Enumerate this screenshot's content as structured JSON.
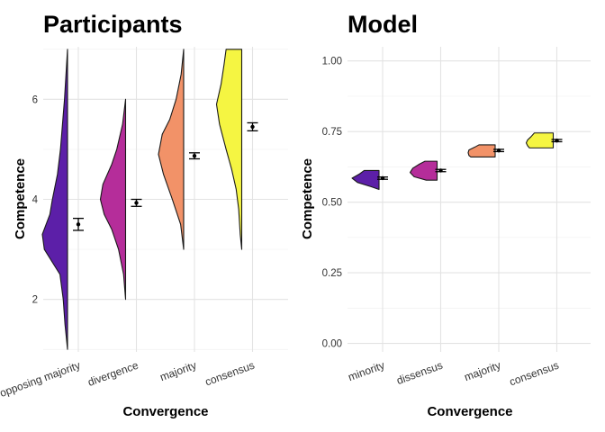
{
  "chart_data": [
    {
      "type": "violin",
      "title": "Participants",
      "xlabel": "Convergence",
      "ylabel": "Competence",
      "ylim": [
        0.95,
        7.05
      ],
      "yticks": [
        2,
        4,
        6
      ],
      "grid": true,
      "legend": "none",
      "categories": [
        "opposing majority",
        "divergence",
        "majority",
        "consensus"
      ],
      "colors": [
        "#5c1fa8",
        "#b52d9a",
        "#f29268",
        "#f5f542"
      ],
      "means": [
        3.5,
        3.93,
        4.87,
        5.45
      ],
      "error": [
        0.12,
        0.07,
        0.06,
        0.08
      ],
      "density": [
        {
          "y": [
            1,
            1.5,
            2,
            2.5,
            3,
            3.3,
            3.7,
            4,
            4.5,
            5,
            5.5,
            6,
            6.5,
            7
          ],
          "w": [
            0,
            0.1,
            0.17,
            0.3,
            0.92,
            1,
            0.7,
            0.6,
            0.4,
            0.28,
            0.2,
            0.12,
            0.06,
            0
          ]
        },
        {
          "y": [
            2,
            2.5,
            3,
            3.4,
            3.7,
            4,
            4.3,
            4.7,
            5,
            5.5,
            6
          ],
          "w": [
            0,
            0.08,
            0.28,
            0.55,
            0.85,
            1,
            0.9,
            0.55,
            0.35,
            0.12,
            0
          ]
        },
        {
          "y": [
            3,
            3.5,
            4,
            4.5,
            4.9,
            5.3,
            5.6,
            6,
            6.5,
            7
          ],
          "w": [
            0,
            0.12,
            0.45,
            0.8,
            1,
            0.85,
            0.55,
            0.3,
            0.1,
            0
          ]
        },
        {
          "y": [
            3,
            3.3,
            3.8,
            4.2,
            4.6,
            5,
            5.5,
            5.9,
            6.3,
            6.7,
            7
          ],
          "w": [
            0,
            0.06,
            0.12,
            0.22,
            0.4,
            0.62,
            0.88,
            1,
            0.82,
            0.7,
            0.62
          ]
        }
      ]
    },
    {
      "type": "violin",
      "title": "Model",
      "xlabel": "Convergence",
      "ylabel": "Competence",
      "ylim": [
        -0.03,
        1.05
      ],
      "yticks": [
        0,
        0.25,
        0.5,
        0.75,
        1
      ],
      "ytick_labels": [
        "0.00",
        "0.25",
        "0.50",
        "0.75",
        "1.00"
      ],
      "grid": true,
      "legend": "none",
      "categories": [
        "minority",
        "dissensus",
        "majority",
        "consensus"
      ],
      "colors": [
        "#5c1fa8",
        "#b52d9a",
        "#f29268",
        "#f5f542"
      ],
      "means": [
        0.585,
        0.612,
        0.683,
        0.718
      ],
      "error": [
        0.004,
        0.004,
        0.004,
        0.004
      ],
      "density": [
        {
          "y": [
            0.545,
            0.555,
            0.57,
            0.585,
            0.6,
            0.612
          ],
          "w": [
            0,
            0.3,
            0.8,
            1,
            0.72,
            0.55
          ]
        },
        {
          "y": [
            0.578,
            0.59,
            0.605,
            0.62,
            0.635,
            0.645
          ],
          "w": [
            0.4,
            0.85,
            1,
            0.9,
            0.65,
            0.45
          ]
        },
        {
          "y": [
            0.66,
            0.665,
            0.675,
            0.685,
            0.695,
            0.703
          ],
          "w": [
            0.9,
            0.97,
            1,
            0.97,
            0.75,
            0.6
          ]
        },
        {
          "y": [
            0.692,
            0.7,
            0.71,
            0.72,
            0.732,
            0.745
          ],
          "w": [
            0.88,
            0.95,
            1,
            0.95,
            0.82,
            0.7
          ]
        }
      ]
    }
  ]
}
